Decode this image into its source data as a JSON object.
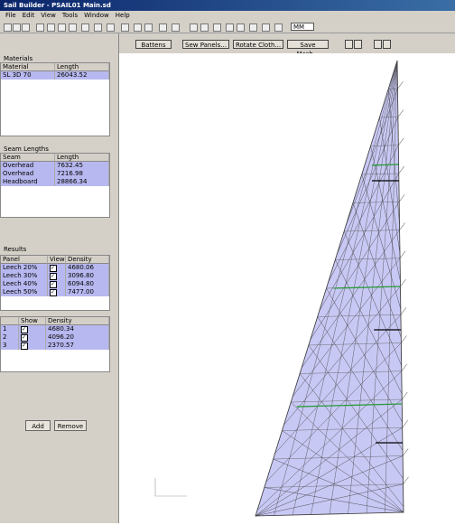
{
  "window": {
    "title": "Sail Builder - PSAIL01 Main.sd",
    "menu": [
      "File",
      "Edit",
      "View",
      "Tools",
      "Window",
      "Help"
    ],
    "units": "MM",
    "buttons": [
      "Battens",
      "Sew Panels...",
      "Rotate Cloth...",
      "Save Mesh..."
    ]
  },
  "panels": [
    {
      "title": "Materials",
      "columns": [
        "Material",
        "Length"
      ],
      "rows": [
        [
          "SL 3D 70",
          "26043.52"
        ]
      ]
    },
    {
      "title": "Seam Lengths",
      "columns": [
        "Seam",
        "Length"
      ],
      "rows": [
        [
          "Overhead",
          "7632.45"
        ],
        [
          "Overhead",
          "7216.98"
        ],
        [
          "Headboard",
          "28866.34"
        ]
      ]
    },
    {
      "title": "Results",
      "columns": [
        "Panel",
        "View",
        "Density"
      ],
      "rows": [
        [
          "Leech 20%",
          "",
          "4680.06"
        ],
        [
          "Leech 30%",
          "",
          "3096.80"
        ],
        [
          "Leech 40%",
          "",
          "6094.80"
        ],
        [
          "Leech 50%",
          "",
          "7477.00"
        ]
      ]
    },
    {
      "columns": [
        "",
        "Show",
        "Density"
      ],
      "rows": [
        [
          "1",
          "",
          "4680.34"
        ],
        [
          "2",
          "",
          "4096.20"
        ],
        [
          "3",
          "",
          "2370.57"
        ]
      ]
    }
  ],
  "tabs": [
    "Add",
    "Remove"
  ]
}
